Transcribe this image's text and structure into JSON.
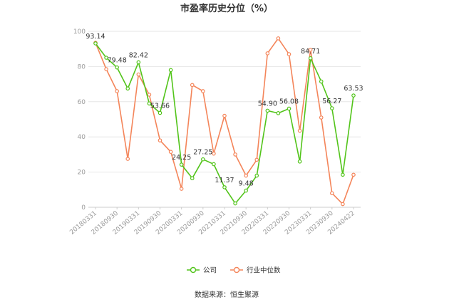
{
  "chart_data": {
    "type": "line",
    "title": "市盈率历史分位（%）",
    "source": "数据来源：恒生聚源",
    "ylim": [
      0,
      100
    ],
    "yticks": [
      0,
      20,
      40,
      60,
      80,
      100
    ],
    "xtick_labels": [
      "20180331",
      "20180930",
      "20190331",
      "20190930",
      "20200331",
      "20200930",
      "20210331",
      "20210930",
      "20220331",
      "20220930",
      "20230331",
      "20230930",
      "20240422"
    ],
    "grid": true,
    "legend_position": "bottom",
    "x": [
      "20180331",
      "20180630",
      "20180930",
      "20181231",
      "20190331",
      "20190630",
      "20190930",
      "20191231",
      "20200331",
      "20200630",
      "20200930",
      "20201231",
      "20210331",
      "20210630",
      "20210930",
      "20211231",
      "20220331",
      "20220630",
      "20220930",
      "20221231",
      "20230331",
      "20230630",
      "20230930",
      "20231231",
      "20240422"
    ],
    "series": [
      {
        "name": "公司",
        "color": "#52c41a",
        "values": [
          93.14,
          85.0,
          79.48,
          67.5,
          82.42,
          59.0,
          53.66,
          78.0,
          24.25,
          16.5,
          27.25,
          24.5,
          11.37,
          2.2,
          9.48,
          18.0,
          54.9,
          53.5,
          56.08,
          26.0,
          84.71,
          71.5,
          56.27,
          18.5,
          63.53
        ],
        "labels": {
          "0": "93.14",
          "2": "79.48",
          "4": "82.42",
          "6": "53.66",
          "8": "24.25",
          "10": "27.25",
          "12": "11.37",
          "14": "9.48",
          "16": "54.90",
          "18": "56.08",
          "20": "84.71",
          "22": "56.27",
          "24": "63.53"
        }
      },
      {
        "name": "行业中位数",
        "color": "#f4855a",
        "values": [
          93.5,
          78.5,
          66.0,
          27.5,
          75.5,
          64.0,
          38.0,
          31.5,
          10.5,
          69.5,
          66.0,
          30.5,
          52.0,
          30.0,
          18.0,
          27.0,
          87.5,
          96.0,
          87.0,
          43.5,
          89.5,
          51.0,
          8.0,
          1.8,
          18.5
        ],
        "labels": {}
      }
    ]
  },
  "legend": [
    {
      "label": "公司",
      "color": "#52c41a"
    },
    {
      "label": "行业中位数",
      "color": "#f4855a"
    }
  ]
}
